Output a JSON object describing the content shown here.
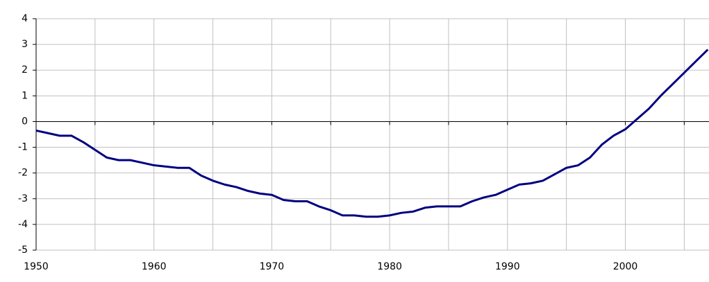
{
  "chart_data": {
    "type": "line",
    "x": [
      1950,
      1951,
      1952,
      1953,
      1954,
      1955,
      1956,
      1957,
      1958,
      1959,
      1960,
      1961,
      1962,
      1963,
      1964,
      1965,
      1966,
      1967,
      1968,
      1969,
      1970,
      1971,
      1972,
      1973,
      1974,
      1975,
      1976,
      1977,
      1978,
      1979,
      1980,
      1981,
      1982,
      1983,
      1984,
      1985,
      1986,
      1987,
      1988,
      1989,
      1990,
      1991,
      1992,
      1993,
      1994,
      1995,
      1996,
      1997,
      1998,
      1999,
      2000,
      2001,
      2002,
      2003,
      2004,
      2005,
      2006,
      2007
    ],
    "series": [
      {
        "color": "#000080",
        "values": [
          -0.35,
          -0.45,
          -0.55,
          -0.55,
          -0.8,
          -1.1,
          -1.4,
          -1.5,
          -1.5,
          -1.6,
          -1.7,
          -1.75,
          -1.8,
          -1.8,
          -2.1,
          -2.3,
          -2.45,
          -2.55,
          -2.7,
          -2.8,
          -2.85,
          -3.05,
          -3.1,
          -3.1,
          -3.3,
          -3.45,
          -3.65,
          -3.65,
          -3.7,
          -3.7,
          -3.65,
          -3.55,
          -3.5,
          -3.35,
          -3.3,
          -3.3,
          -3.3,
          -3.1,
          -2.95,
          -2.85,
          -2.65,
          -2.45,
          -2.4,
          -2.3,
          -2.05,
          -1.8,
          -1.7,
          -1.4,
          -0.9,
          -0.55,
          -0.3,
          0.1,
          0.5,
          1.0,
          1.45,
          1.9,
          2.35,
          2.8
        ]
      }
    ],
    "xlim": [
      1950,
      2007.1
    ],
    "xticks": [
      1950,
      1960,
      1970,
      1980,
      1990,
      2000
    ],
    "x_minor_ticks": [
      1955,
      1965,
      1975,
      1985,
      1995,
      2005
    ],
    "ylim": [
      -5,
      4
    ],
    "yticks": [
      -5,
      -4,
      -3,
      -2,
      -1,
      0,
      1,
      2,
      3,
      4
    ],
    "grid": true
  }
}
